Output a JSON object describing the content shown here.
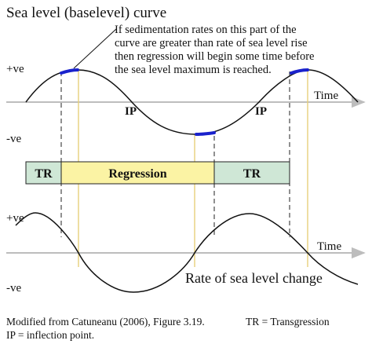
{
  "title": "Sea level (baselevel) curve",
  "annotation_lines": [
    "If sedimentation rates on this part of the",
    "curve are greater than rate of sea level rise",
    "then regression will begin some time before",
    "the sea level maximum is reached."
  ],
  "top_plot": {
    "y_pos_label": "+ve",
    "y_neg_label": "-ve",
    "time_label": "Time",
    "inflection_labels": [
      "IP",
      "IP"
    ]
  },
  "band": {
    "segments": [
      {
        "label": "TR",
        "kind": "transgression"
      },
      {
        "label": "Regression",
        "kind": "regression"
      },
      {
        "label": "TR",
        "kind": "transgression"
      }
    ]
  },
  "bottom_plot": {
    "y_pos_label": "+ve",
    "y_neg_label": "-ve",
    "time_label": "Time",
    "curve_label": "Rate of sea level change"
  },
  "caption": {
    "line1_left": "Modified from Catuneanu (2006), Figure 3.19.",
    "line1_right": "TR = Transgression",
    "line2": "IP = inflection point."
  },
  "colors": {
    "transgression_fill": "#cfe7d6",
    "regression_fill": "#fbf3a4",
    "highlight_stroke": "#1a22cc",
    "timing_line": "#e6cf7a",
    "axis": "#bdbdbd",
    "curve": "#111111",
    "dashed": "#222222"
  }
}
